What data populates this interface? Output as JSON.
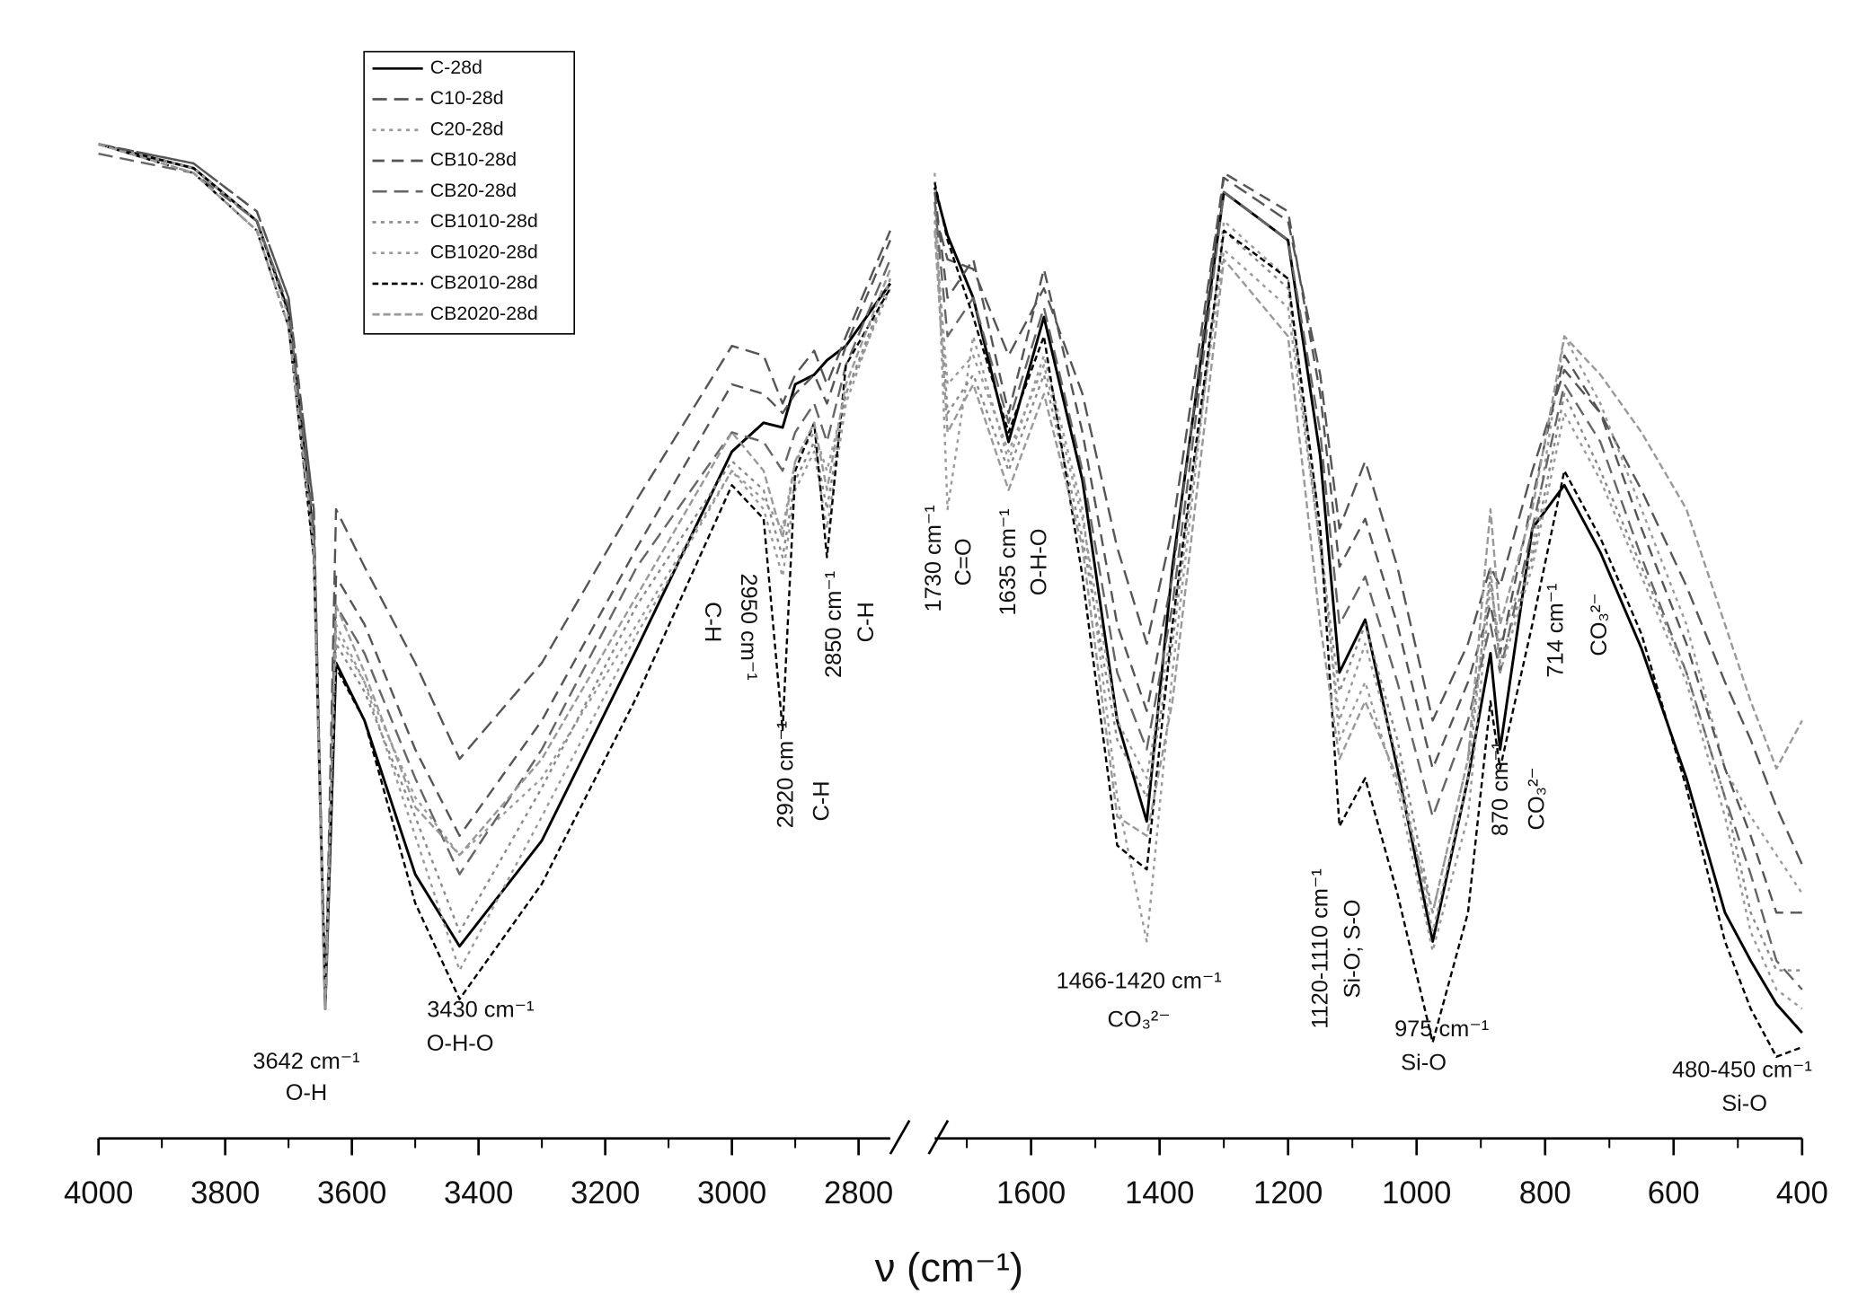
{
  "chart_data": {
    "type": "line",
    "x_label": "ν (cm⁻¹)",
    "x": [
      4000,
      3850,
      3750,
      3700,
      3660,
      3642,
      3625,
      3580,
      3500,
      3430,
      3300,
      3150,
      3000,
      2950,
      2920,
      2900,
      2870,
      2850,
      2820,
      2750,
      1750,
      1730,
      1690,
      1635,
      1580,
      1520,
      1466,
      1420,
      1380,
      1300,
      1200,
      1150,
      1120,
      1080,
      1030,
      975,
      920,
      885,
      870,
      820,
      770,
      714,
      650,
      580,
      520,
      480,
      440,
      400
    ],
    "xlim": [
      [
        4000,
        2750
      ],
      [
        1750,
        400
      ]
    ],
    "xticks": [
      [
        4000,
        3800,
        3600,
        3400,
        3200,
        3000,
        2800
      ],
      [
        1600,
        1400,
        1200,
        1000,
        800,
        600,
        400
      ]
    ],
    "xminorticks": [
      [
        3900,
        3700,
        3500,
        3300,
        3100,
        2900
      ],
      [
        1700,
        1500,
        1300,
        1100,
        900,
        700,
        500
      ]
    ],
    "ylim": [
      0,
      100
    ],
    "series": [
      {
        "name": "C-28d",
        "color": "#000000",
        "dash": "none",
        "values": [
          100,
          97.5,
          92,
          82.5,
          59,
          10,
          46,
          40,
          24,
          16.5,
          27.5,
          47.5,
          68,
          71,
          70.5,
          75,
          76,
          77.5,
          79,
          85.5,
          95.5,
          90.5,
          84,
          69,
          82,
          65,
          40,
          29.5,
          56,
          95,
          90,
          67.5,
          45,
          50.5,
          35,
          17,
          34,
          47,
          37,
          60,
          64.5,
          57.5,
          47.5,
          34,
          20,
          15,
          10.5,
          7.5
        ]
      },
      {
        "name": "C10-28d",
        "color": "#555555",
        "dash": "12,6",
        "values": [
          100,
          98,
          93,
          84,
          62,
          10,
          62,
          56,
          46,
          36,
          46,
          63,
          79,
          78,
          73,
          76,
          78.5,
          75,
          80,
          91,
          93,
          88,
          87,
          78,
          85,
          74,
          58,
          48,
          60,
          96.5,
          92,
          76,
          60,
          67,
          56,
          40,
          48,
          56,
          54,
          66,
          76.5,
          72,
          64,
          54,
          44,
          38,
          31,
          25
        ]
      },
      {
        "name": "C20-28d",
        "color": "#9a9a9a",
        "dash": "3,4",
        "values": [
          100,
          97.5,
          92,
          82,
          58,
          10,
          49,
          44,
          32,
          26,
          34,
          50,
          66,
          63,
          60,
          67,
          70,
          66,
          74,
          85,
          97,
          62,
          80,
          67,
          78,
          62,
          32,
          17,
          45,
          92,
          86,
          60,
          38,
          44,
          33,
          16,
          30,
          54,
          48,
          58,
          80,
          73,
          62,
          50,
          35,
          30,
          26,
          22
        ]
      },
      {
        "name": "CB10-28d",
        "color": "#555555",
        "dash": "10,6",
        "values": [
          100,
          98,
          93,
          84,
          62,
          10,
          55,
          50,
          37,
          28,
          40,
          58,
          75,
          74,
          72,
          74,
          76,
          73,
          79,
          90,
          95,
          84,
          88,
          72,
          87,
          70,
          50,
          41,
          55,
          97,
          93,
          74,
          56,
          61,
          50,
          35,
          44,
          52,
          47,
          63,
          78,
          72,
          60,
          48,
          35,
          28,
          20,
          20
        ]
      },
      {
        "name": "CB20-28d",
        "color": "#666666",
        "dash": "12,6",
        "values": [
          99,
          97,
          92,
          83,
          60,
          10,
          52,
          47,
          34,
          24,
          37,
          56,
          70,
          69,
          66,
          70,
          73,
          69,
          77,
          88,
          94,
          80,
          84,
          71,
          83,
          66,
          45,
          37,
          52,
          95,
          90,
          70,
          50,
          55,
          44,
          30,
          40,
          50,
          45,
          60,
          75,
          69,
          57,
          45,
          32,
          24,
          15,
          12
        ]
      },
      {
        "name": "CB1010-28d",
        "color": "#888888",
        "dash": "3,4",
        "values": [
          100,
          97,
          91,
          81,
          57,
          10,
          48,
          43,
          30,
          18,
          33,
          52,
          67,
          64,
          57,
          65,
          69,
          62,
          74,
          86,
          93,
          72,
          76,
          66,
          76,
          59,
          38,
          32,
          48,
          91,
          85,
          58,
          43,
          50,
          38,
          20,
          36,
          55,
          46,
          57,
          74,
          66,
          56,
          45,
          32,
          20,
          14,
          14
        ]
      },
      {
        "name": "CB1020-28d",
        "color": "#999999",
        "dash": "3,4",
        "values": [
          100,
          97,
          91,
          81,
          57,
          10,
          50,
          44,
          28,
          14,
          30,
          49,
          66,
          62,
          55,
          64,
          68,
          60,
          73,
          86,
          92,
          75,
          78,
          68,
          77,
          61,
          40,
          34,
          50,
          89,
          83,
          58,
          40,
          48,
          36,
          18,
          34,
          56,
          45,
          56,
          72,
          65,
          55,
          44,
          30,
          18,
          12,
          10
        ]
      },
      {
        "name": "CB2010-28d",
        "color": "#000000",
        "dash": "5,3",
        "values": [
          100,
          97,
          91,
          81,
          57,
          12.5,
          45.5,
          40,
          21,
          11,
          23,
          42.5,
          64.5,
          61,
          39,
          66,
          71,
          57,
          77,
          85,
          96,
          90,
          82,
          70,
          80,
          55,
          27,
          24.5,
          50,
          91,
          86,
          60,
          29,
          34,
          22,
          6.5,
          20,
          42,
          35,
          50,
          66,
          59,
          49,
          33,
          17,
          10,
          5,
          6
        ]
      },
      {
        "name": "CB2020-28d",
        "color": "#999999",
        "dash": "6,3",
        "values": [
          100,
          97,
          91,
          81,
          58,
          10,
          52,
          45,
          31,
          26,
          36,
          53,
          70,
          66,
          59,
          67,
          71,
          64,
          75,
          87,
          91,
          70,
          75,
          64,
          74,
          58,
          30,
          28,
          42,
          88,
          80,
          50,
          36,
          42,
          34,
          20,
          36,
          62,
          50,
          62,
          80,
          76,
          70,
          62,
          50,
          42,
          35,
          40
        ]
      }
    ],
    "annotations": [
      {
        "lines": [
          "3642 cm⁻¹",
          "O-H"
        ]
      },
      {
        "lines": [
          "3430 cm⁻¹",
          "O-H-O"
        ]
      },
      {
        "lines": [
          "2950 cm⁻¹",
          "C-H"
        ]
      },
      {
        "lines": [
          "2920 cm⁻¹",
          "C-H"
        ]
      },
      {
        "lines": [
          "2850 cm⁻¹",
          "C-H"
        ]
      },
      {
        "lines": [
          "1730 cm⁻¹",
          "C=O"
        ]
      },
      {
        "lines": [
          "1635 cm⁻¹",
          "O-H-O"
        ]
      },
      {
        "lines": [
          "1466-1420 cm⁻¹",
          "CO₃²⁻"
        ]
      },
      {
        "lines": [
          "1120-1110 cm⁻¹",
          "Si-O; S-O"
        ]
      },
      {
        "lines": [
          "975 cm⁻¹",
          "Si-O"
        ]
      },
      {
        "lines": [
          "870 cm⁻¹",
          "CO₃²⁻"
        ]
      },
      {
        "lines": [
          "714 cm⁻¹",
          "CO₃²⁻"
        ]
      },
      {
        "lines": [
          "480-450 cm⁻¹",
          "Si-O"
        ]
      }
    ]
  }
}
